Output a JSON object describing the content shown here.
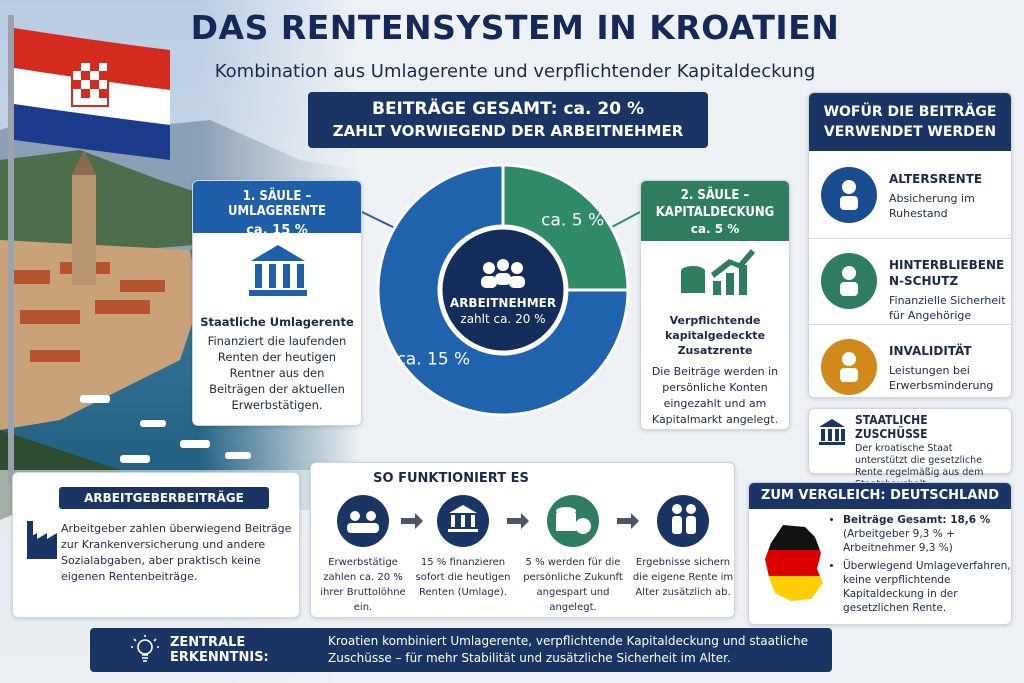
{
  "header": {
    "title": "DAS RENTENSYSTEM IN KROATIEN",
    "subtitle": "Kombination aus Umlagerente und verpflichtender Kapitaldeckung"
  },
  "total_banner": {
    "line1": "BEITRÄGE GESAMT: ca. 20 %",
    "line2": "ZAHLT VORWIEGEND DER ARBEITNEHMER"
  },
  "chart_data": {
    "type": "pie",
    "values": [
      15,
      5
    ],
    "value_labels": [
      "ca. 15 %",
      "ca. 5 %"
    ],
    "colors": [
      "#1f63ad",
      "#2f8a68"
    ],
    "center_title": "ARBEITNEHMER",
    "center_subtitle": "zahlt ca. 20 %"
  },
  "pillar1": {
    "title": "1. SÄULE – UMLAGERENTE",
    "share": "ca. 15 %",
    "heading": "Staatliche Umlagerente",
    "text": "Finanziert die laufenden Renten der heutigen Rentner aus den Beiträgen der aktuellen Erwerbstätigen."
  },
  "pillar2": {
    "title": "2. SÄULE – KAPITALDECKUNG",
    "share": "ca. 5 %",
    "heading": "Verpflichtende kapitalgedeckte Zusatzrente",
    "text": "Die Beiträge werden in persönliche Konten eingezahlt und am Kapitalmarkt angelegt."
  },
  "usage": {
    "title": "WOFÜR DIE BEITRÄGE VERWENDET WERDEN",
    "items": [
      {
        "title": "ALTERSRENTE",
        "text": "Absicherung im Ruhestand"
      },
      {
        "title": "HINTERBLIEBENEN-SCHUTZ",
        "text": "Finanzielle Sicherheit für Angehörige"
      },
      {
        "title": "INVALIDITÄT",
        "text": "Leistungen bei Erwerbsminderung"
      }
    ]
  },
  "subsidies": {
    "title": "STAATLICHE ZUSCHÜSSE",
    "text": "Der kroatische Staat unterstützt die gesetzliche Rente regelmäßig aus dem Staatshaushalt."
  },
  "employer": {
    "title": "ARBEITGEBERBEITRÄGE",
    "text": "Arbeitgeber zahlen überwiegend Beiträge zur Krankenversicherung und andere Sozialabgaben, aber praktisch keine eigenen Rentenbeiträge."
  },
  "process": {
    "title": "SO FUNKTIONIERT ES",
    "steps": [
      "Erwerbstätige zahlen ca. 20 % ihrer Bruttolöhne ein.",
      "15 % finanzieren sofort die heutigen Renten (Umlage).",
      "5 % werden für die persönliche Zukunft angespart und angelegt.",
      "Ergebnisse sichern die eigene Rente im Alter zusätzlich ab."
    ]
  },
  "comparison": {
    "title": "ZUM VERGLEICH: DEUTSCHLAND",
    "points": [
      {
        "heading": "Beiträge Gesamt: 18,6 %",
        "detail": "(Arbeitgeber 9,3 % + Arbeitnehmer 9,3 %)"
      },
      {
        "heading": "Überwiegend Umlageverfahren, keine verpflichtende Kapitaldeckung in der gesetzlichen Rente."
      }
    ]
  },
  "insight": {
    "label": "ZENTRALE ERKENNTNIS:",
    "text": "Kroatien kombiniert Umlagerente, verpflichtende Kapitaldeckung und staatliche Zuschüsse – für mehr Stabilität und zusätzliche Sicherheit im Alter."
  }
}
